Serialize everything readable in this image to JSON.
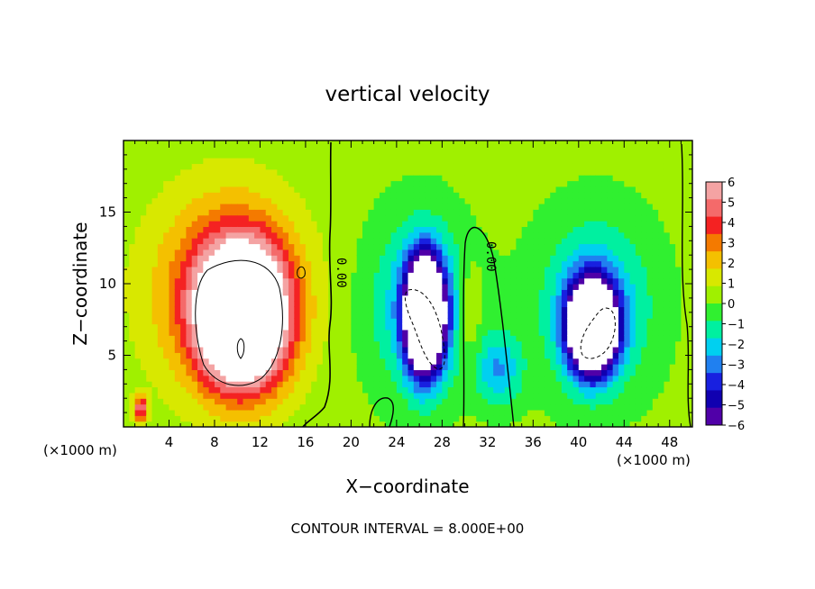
{
  "chart_data": {
    "type": "heatmap",
    "title": "vertical velocity",
    "xlabel": "X−coordinate",
    "ylabel": "Z−coordinate",
    "x_unit_left": "(×1000 m)",
    "x_unit_right": "(×1000 m)",
    "footer": "CONTOUR INTERVAL = 8.000E+00",
    "xlim": [
      0,
      50
    ],
    "ylim": [
      0,
      20
    ],
    "x_ticks": [
      "4",
      "8",
      "12",
      "16",
      "20",
      "24",
      "28",
      "32",
      "36",
      "40",
      "44",
      "48"
    ],
    "y_ticks": [
      "5",
      "10",
      "15"
    ],
    "colorbar": {
      "labels": [
        "6",
        "5",
        "4",
        "3",
        "2",
        "1",
        "0",
        "−1",
        "−2",
        "−3",
        "−4",
        "−5",
        "−6"
      ],
      "colors": [
        "#f4a3a3",
        "#f46a6a",
        "#f42222",
        "#f47a00",
        "#f4c000",
        "#d8e800",
        "#a0f000",
        "#30f030",
        "#00f0a0",
        "#00d0f0",
        "#2080f0",
        "#1820e0",
        "#1000b0",
        "#5000a8"
      ]
    },
    "contour_labels": [
      "0.00",
      "0.00"
    ],
    "features": [
      {
        "name": "updraft-core",
        "x": 10.5,
        "z": 7.8,
        "sx": 3.6,
        "sz": 4.5,
        "w": 14
      },
      {
        "name": "updraft-halo",
        "x": 9.0,
        "z": 9.5,
        "sx": 6.5,
        "sz": 6.8,
        "w": 4
      },
      {
        "name": "updraft-small",
        "x": 1.5,
        "z": 1.3,
        "sx": 0.6,
        "sz": 0.9,
        "w": 5
      },
      {
        "name": "updraft-east-column",
        "x": 30.5,
        "z": 8.0,
        "sx": 1.0,
        "sz": 3.5,
        "w": 1.5
      },
      {
        "name": "downdraft-west",
        "x": 26.5,
        "z": 7.8,
        "sx": 1.6,
        "sz": 3.8,
        "w": -16
      },
      {
        "name": "downdraft-west-halo",
        "x": 26.0,
        "z": 8.5,
        "sx": 4.5,
        "sz": 6.0,
        "w": -3
      },
      {
        "name": "downdraft-east",
        "x": 41.2,
        "z": 7.0,
        "sx": 2.0,
        "sz": 3.0,
        "w": -16
      },
      {
        "name": "downdraft-east-halo",
        "x": 41.5,
        "z": 8.5,
        "sx": 5.0,
        "sz": 6.0,
        "w": -3
      },
      {
        "name": "downdraft-center",
        "x": 33.0,
        "z": 4.0,
        "sx": 2.0,
        "sz": 2.5,
        "w": -3
      }
    ]
  }
}
